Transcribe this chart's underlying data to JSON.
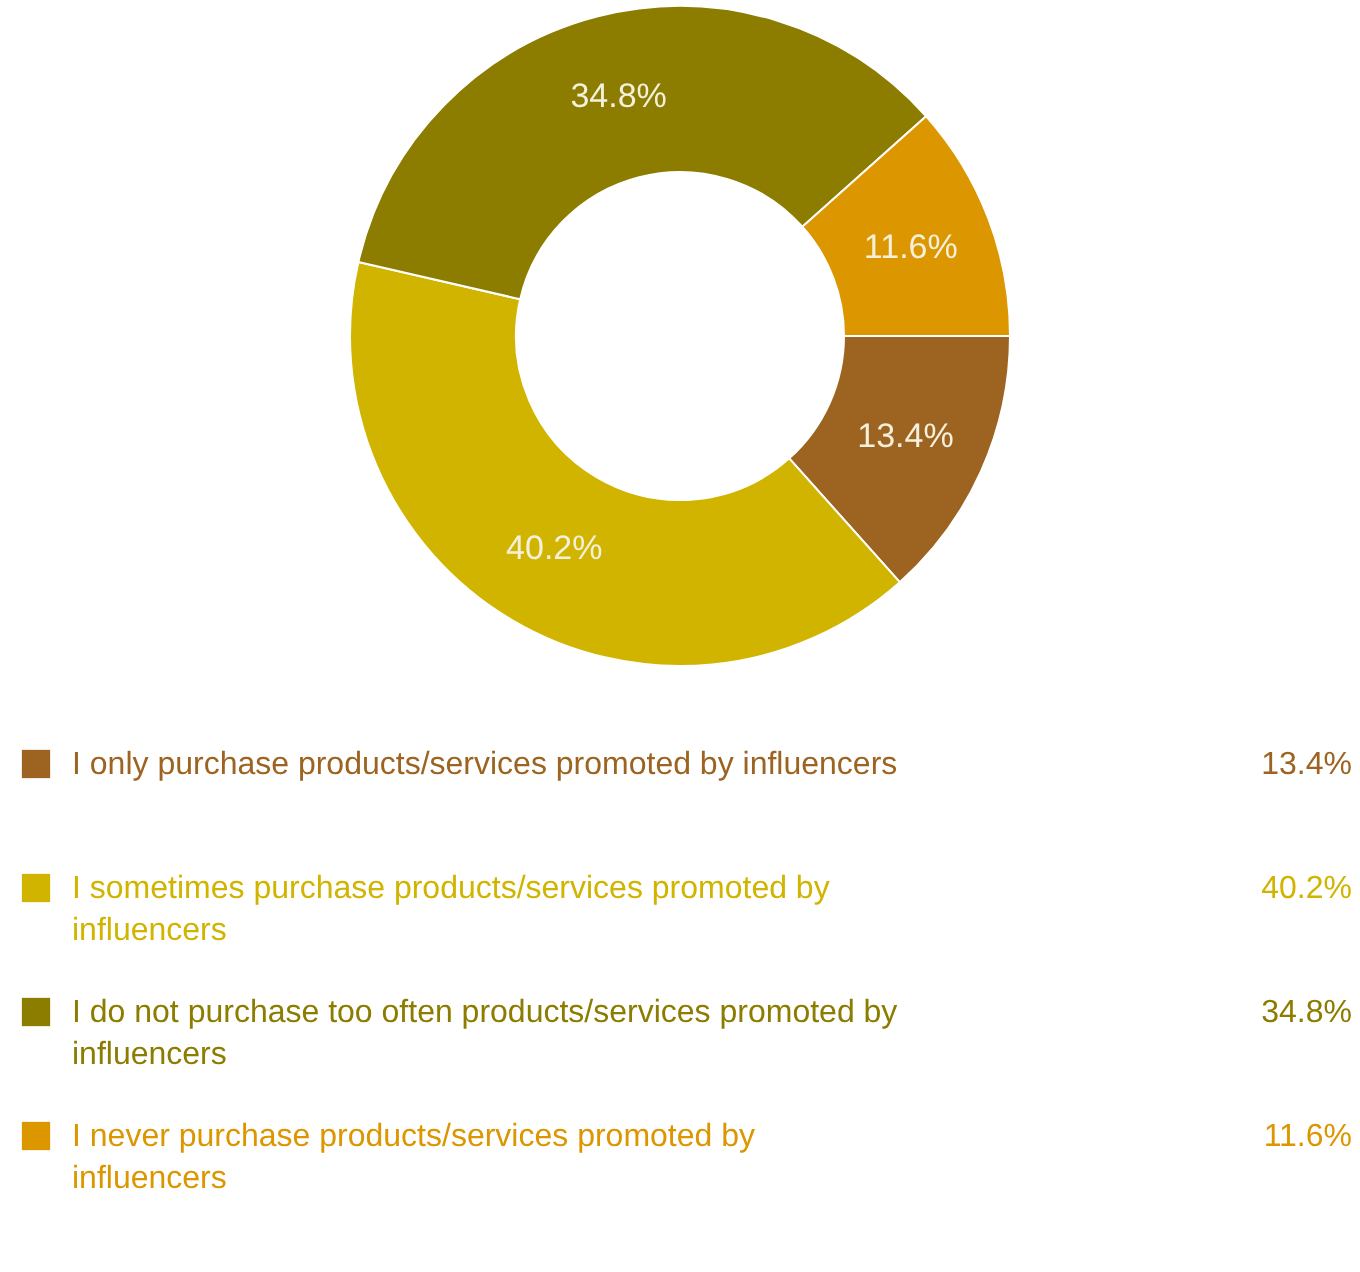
{
  "chart_data": {
    "type": "donut",
    "categories": [
      "I only purchase products/services promoted by influencers",
      "I sometimes purchase products/services promoted by influencers",
      "I do not purchase too often products/services promoted by influencers",
      "I never purchase products/services promoted by influencers"
    ],
    "values": [
      13.4,
      40.2,
      34.8,
      11.6
    ],
    "value_labels": [
      "13.4%",
      "40.2%",
      "34.8%",
      "11.6%"
    ],
    "colors": [
      "#9c6420",
      "#d1b400",
      "#8c7c00",
      "#dc9600"
    ],
    "legend": "bottom"
  }
}
